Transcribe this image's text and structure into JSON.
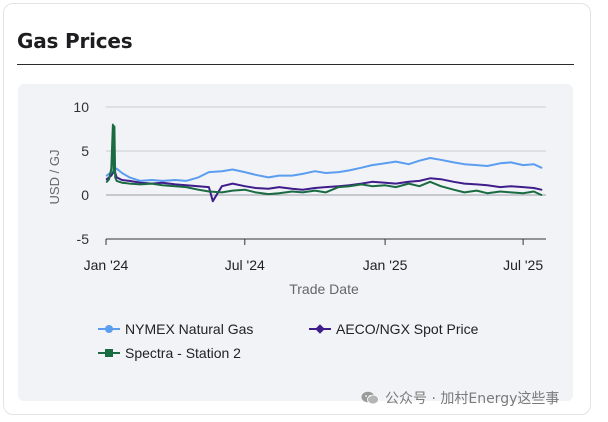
{
  "card": {
    "title": "Gas Prices"
  },
  "watermark": "公众号 · 加村Energy这些事",
  "chart_data": {
    "type": "line",
    "xlabel": "Trade Date",
    "ylabel": "USD / GJ",
    "ylim": [
      -5,
      10
    ],
    "yticks": [
      "10",
      "5",
      "0",
      "-5"
    ],
    "ytick_values": [
      10,
      5,
      0,
      -5
    ],
    "xticks": [
      "Jan '24",
      "Jul '24",
      "Jan '25",
      "Jul '25"
    ],
    "xtick_dates": [
      "2024-01-01",
      "2024-07-01",
      "2025-01-01",
      "2025-07-01"
    ],
    "x_range": [
      "2024-01-01",
      "2025-07-31"
    ],
    "grid": true,
    "legend_position": "bottom",
    "series": [
      {
        "name": "NYMEX Natural Gas",
        "color": "#5b9def",
        "marker": "circle",
        "x": [
          "2024-01-02",
          "2024-01-08",
          "2024-01-15",
          "2024-01-22",
          "2024-02-01",
          "2024-02-15",
          "2024-03-01",
          "2024-03-15",
          "2024-04-01",
          "2024-04-15",
          "2024-05-01",
          "2024-05-15",
          "2024-06-01",
          "2024-06-15",
          "2024-07-01",
          "2024-07-15",
          "2024-08-01",
          "2024-08-15",
          "2024-09-01",
          "2024-09-15",
          "2024-10-01",
          "2024-10-15",
          "2024-11-01",
          "2024-11-15",
          "2024-12-01",
          "2024-12-15",
          "2025-01-01",
          "2025-01-15",
          "2025-02-01",
          "2025-02-15",
          "2025-03-01",
          "2025-03-15",
          "2025-04-01",
          "2025-04-15",
          "2025-05-01",
          "2025-05-15",
          "2025-06-01",
          "2025-06-15",
          "2025-07-01",
          "2025-07-15",
          "2025-07-25"
        ],
        "values": [
          2.2,
          2.6,
          3.0,
          2.5,
          2.0,
          1.6,
          1.7,
          1.6,
          1.7,
          1.6,
          2.0,
          2.6,
          2.7,
          2.9,
          2.6,
          2.3,
          2.0,
          2.2,
          2.2,
          2.4,
          2.7,
          2.5,
          2.6,
          2.8,
          3.1,
          3.4,
          3.6,
          3.8,
          3.5,
          3.9,
          4.2,
          4.0,
          3.7,
          3.5,
          3.4,
          3.3,
          3.6,
          3.7,
          3.4,
          3.5,
          3.1
        ]
      },
      {
        "name": "AECO/NGX Spot Price",
        "color": "#3f1d8a",
        "marker": "diamond",
        "x": [
          "2024-01-02",
          "2024-01-08",
          "2024-01-12",
          "2024-01-15",
          "2024-01-22",
          "2024-02-01",
          "2024-02-15",
          "2024-03-01",
          "2024-03-15",
          "2024-04-01",
          "2024-04-15",
          "2024-05-01",
          "2024-05-15",
          "2024-05-20",
          "2024-06-01",
          "2024-06-15",
          "2024-07-01",
          "2024-07-15",
          "2024-08-01",
          "2024-08-15",
          "2024-09-01",
          "2024-09-15",
          "2024-10-01",
          "2024-10-15",
          "2024-11-01",
          "2024-11-15",
          "2024-12-01",
          "2024-12-15",
          "2025-01-01",
          "2025-01-15",
          "2025-02-01",
          "2025-02-15",
          "2025-03-01",
          "2025-03-15",
          "2025-04-01",
          "2025-04-15",
          "2025-05-01",
          "2025-05-15",
          "2025-06-01",
          "2025-06-15",
          "2025-07-01",
          "2025-07-15",
          "2025-07-25"
        ],
        "values": [
          1.8,
          2.2,
          2.8,
          2.0,
          1.7,
          1.6,
          1.4,
          1.3,
          1.4,
          1.2,
          1.1,
          1.0,
          0.9,
          -0.7,
          1.0,
          1.3,
          1.0,
          0.8,
          0.7,
          0.9,
          0.7,
          0.6,
          0.8,
          0.9,
          1.0,
          1.1,
          1.3,
          1.5,
          1.4,
          1.3,
          1.5,
          1.6,
          1.9,
          1.8,
          1.5,
          1.3,
          1.2,
          1.1,
          0.9,
          1.0,
          0.9,
          0.8,
          0.6
        ]
      },
      {
        "name": "Spectra - Station 2",
        "color": "#1a6b42",
        "marker": "square",
        "x": [
          "2024-01-02",
          "2024-01-05",
          "2024-01-08",
          "2024-01-10",
          "2024-01-11",
          "2024-01-12",
          "2024-01-13",
          "2024-01-15",
          "2024-01-22",
          "2024-02-01",
          "2024-02-15",
          "2024-03-01",
          "2024-03-15",
          "2024-04-01",
          "2024-04-15",
          "2024-05-01",
          "2024-05-15",
          "2024-06-01",
          "2024-06-15",
          "2024-07-01",
          "2024-07-15",
          "2024-08-01",
          "2024-08-15",
          "2024-09-01",
          "2024-09-15",
          "2024-10-01",
          "2024-10-15",
          "2024-11-01",
          "2024-11-15",
          "2024-12-01",
          "2024-12-15",
          "2025-01-01",
          "2025-01-15",
          "2025-02-01",
          "2025-02-15",
          "2025-03-01",
          "2025-03-15",
          "2025-04-01",
          "2025-04-15",
          "2025-05-01",
          "2025-05-15",
          "2025-06-01",
          "2025-06-15",
          "2025-07-01",
          "2025-07-15",
          "2025-07-25"
        ],
        "values": [
          1.5,
          1.8,
          3.0,
          8.0,
          2.5,
          7.8,
          2.0,
          1.6,
          1.4,
          1.3,
          1.2,
          1.3,
          1.1,
          1.0,
          0.9,
          0.6,
          0.4,
          0.3,
          0.5,
          0.6,
          0.3,
          0.1,
          0.2,
          0.4,
          0.3,
          0.5,
          0.3,
          0.9,
          1.0,
          1.2,
          1.0,
          1.1,
          0.9,
          1.3,
          1.0,
          1.5,
          1.0,
          0.6,
          0.3,
          0.5,
          0.2,
          0.4,
          0.3,
          0.2,
          0.4,
          0.0
        ]
      }
    ]
  }
}
